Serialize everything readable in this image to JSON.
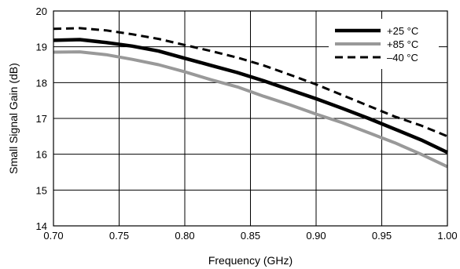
{
  "chart_data": {
    "type": "line",
    "xlabel": "Frequency (GHz)",
    "ylabel": "Small Signal Gain (dB)",
    "xlim": [
      0.7,
      1.0
    ],
    "ylim": [
      14,
      20
    ],
    "xticks": [
      "0.70",
      "0.75",
      "0.80",
      "0.85",
      "0.90",
      "0.95",
      "1.00"
    ],
    "yticks": [
      "14",
      "15",
      "16",
      "17",
      "18",
      "19",
      "20"
    ],
    "grid": true,
    "legend_position": "top-right",
    "series": [
      {
        "name": "+25 °C",
        "color": "#000000",
        "style": "solid",
        "x": [
          0.7,
          0.72,
          0.74,
          0.76,
          0.78,
          0.8,
          0.82,
          0.84,
          0.86,
          0.88,
          0.9,
          0.92,
          0.94,
          0.96,
          0.98,
          1.0
        ],
        "y": [
          19.18,
          19.2,
          19.12,
          19.02,
          18.88,
          18.68,
          18.48,
          18.28,
          18.05,
          17.8,
          17.55,
          17.28,
          17.0,
          16.7,
          16.4,
          16.05
        ]
      },
      {
        "name": "+85 °C",
        "color": "#999999",
        "style": "solid",
        "x": [
          0.7,
          0.72,
          0.74,
          0.76,
          0.78,
          0.8,
          0.82,
          0.84,
          0.86,
          0.88,
          0.9,
          0.92,
          0.94,
          0.96,
          0.98,
          1.0
        ],
        "y": [
          18.85,
          18.86,
          18.78,
          18.65,
          18.5,
          18.3,
          18.08,
          17.88,
          17.62,
          17.38,
          17.12,
          16.88,
          16.6,
          16.32,
          16.0,
          15.65
        ]
      },
      {
        "name": "–40 °C",
        "color": "#000000",
        "style": "dashed",
        "x": [
          0.7,
          0.72,
          0.74,
          0.76,
          0.78,
          0.8,
          0.82,
          0.84,
          0.86,
          0.88,
          0.9,
          0.92,
          0.94,
          0.96,
          0.98,
          1.0
        ],
        "y": [
          19.5,
          19.52,
          19.46,
          19.35,
          19.22,
          19.05,
          18.88,
          18.7,
          18.48,
          18.22,
          17.95,
          17.65,
          17.35,
          17.05,
          16.8,
          16.5
        ]
      }
    ]
  }
}
